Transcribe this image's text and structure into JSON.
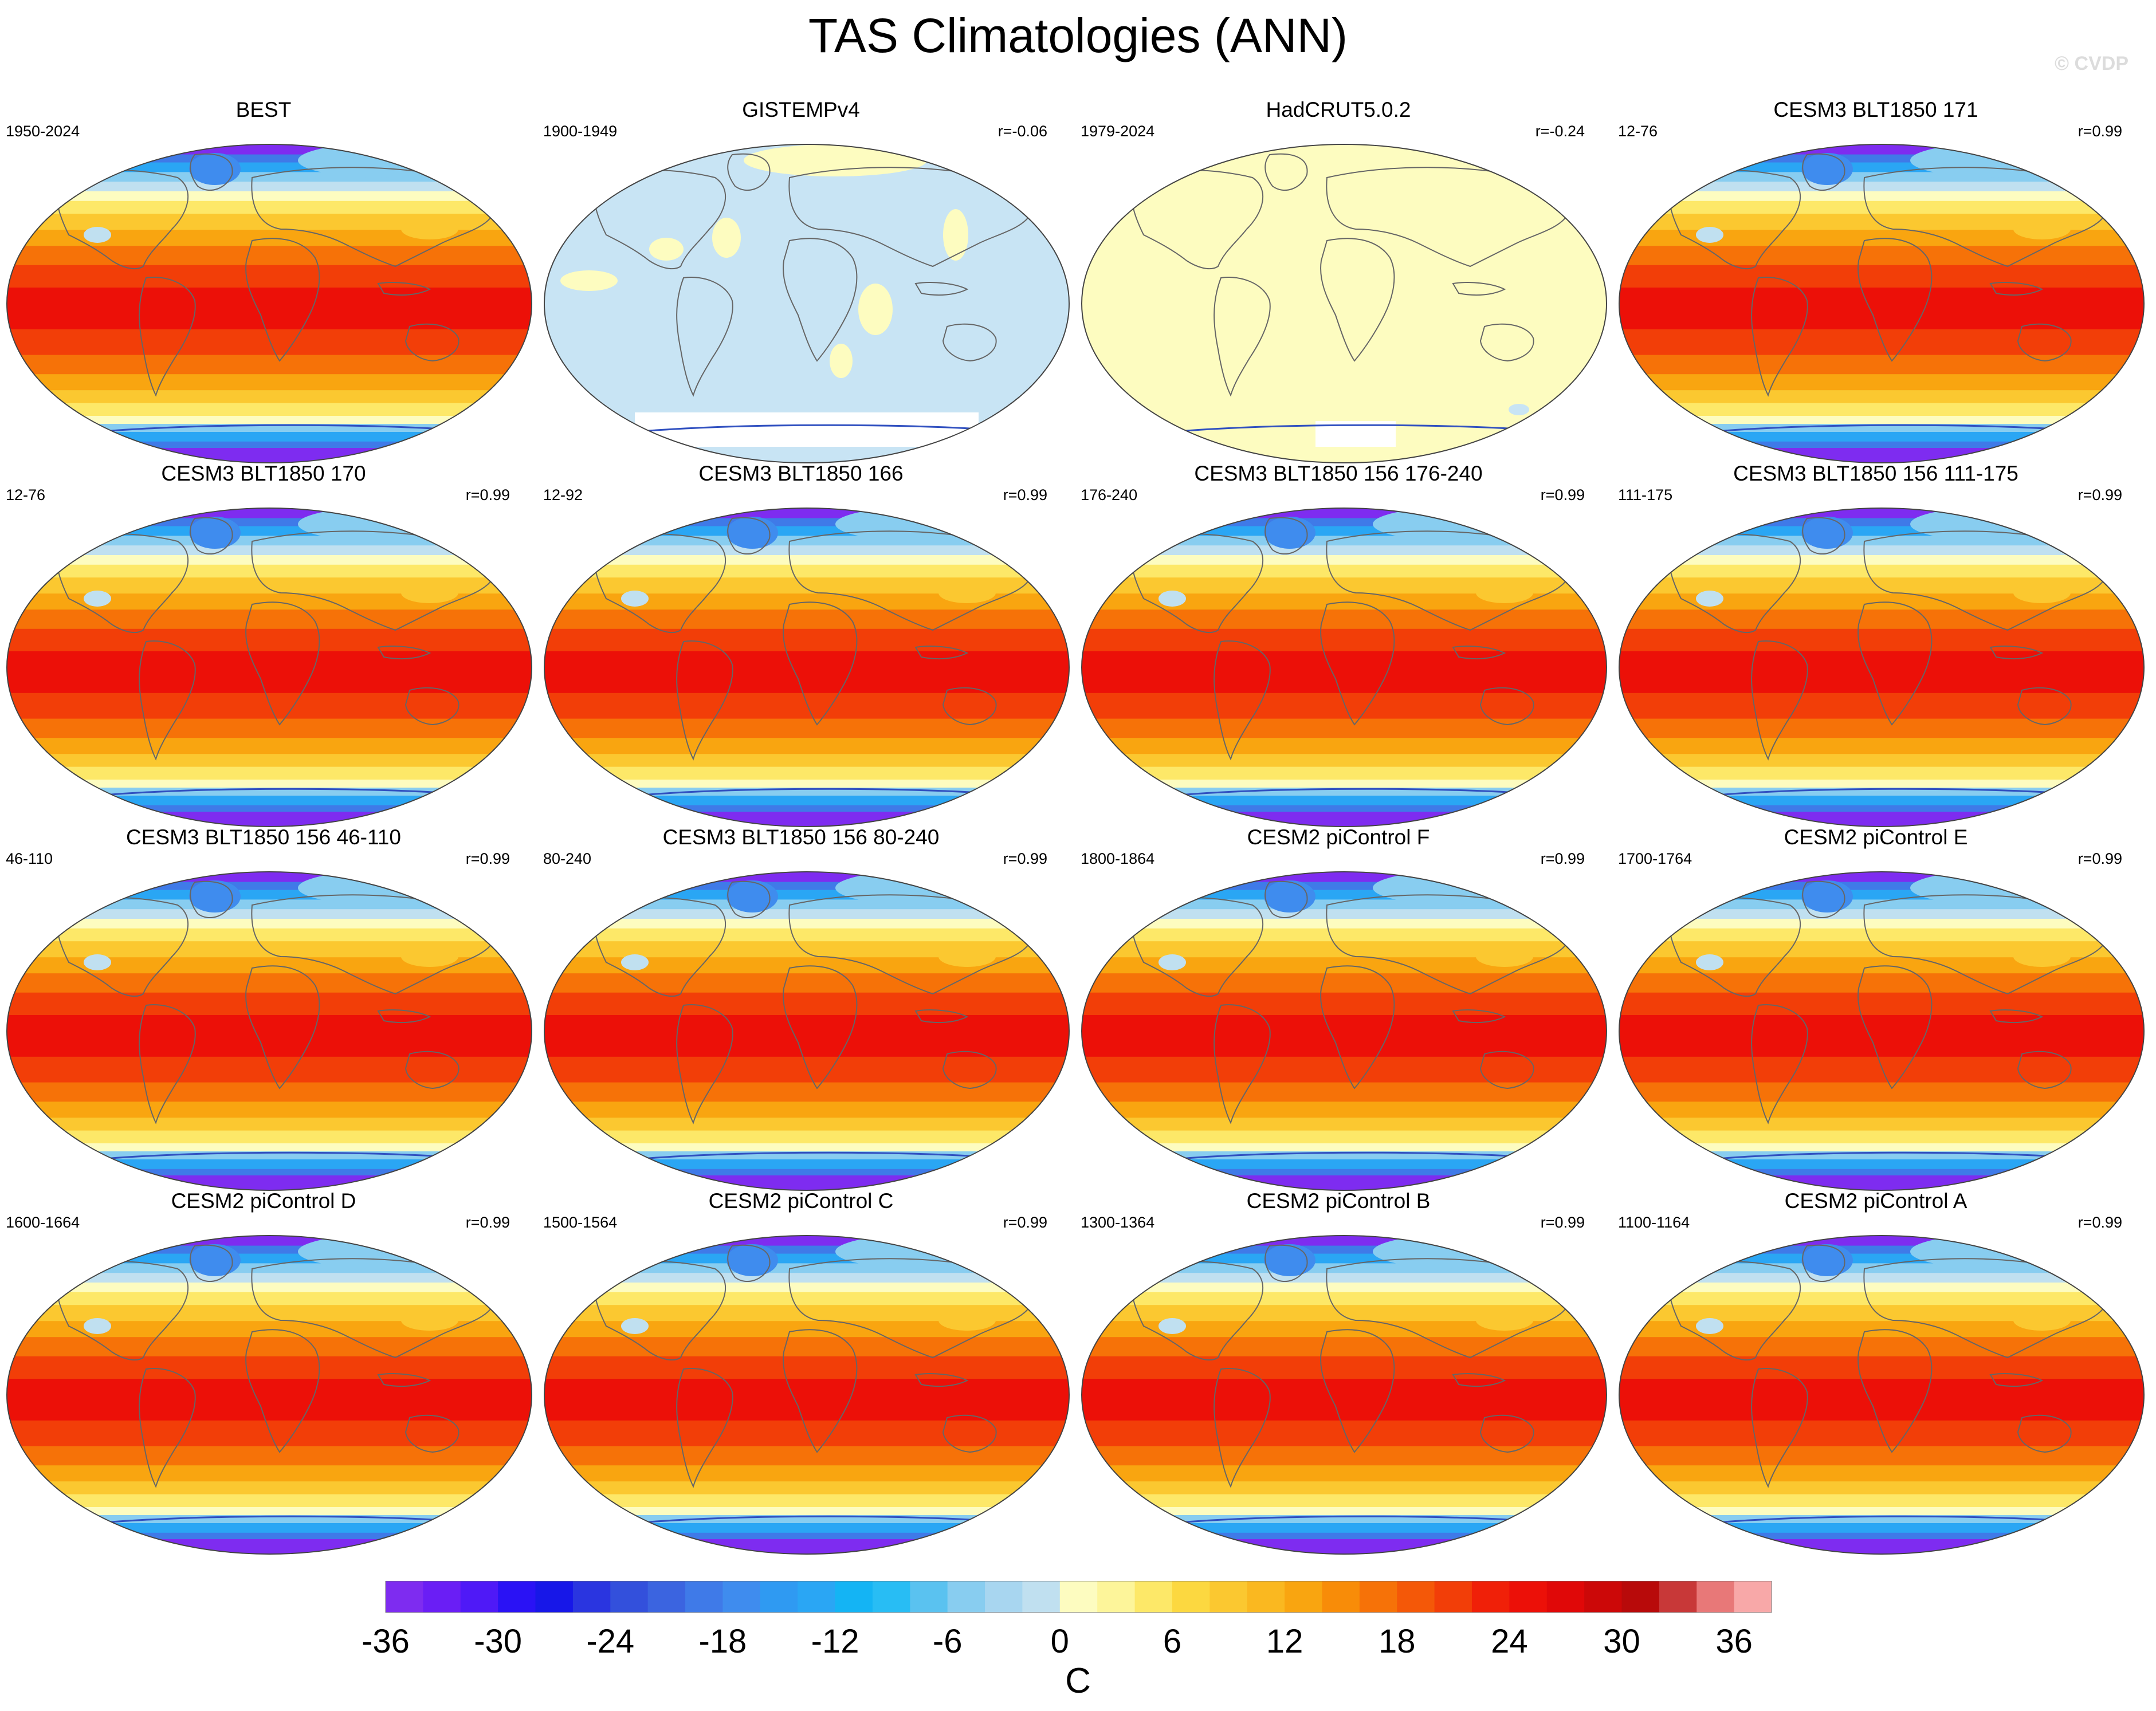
{
  "title": "TAS Climatologies (ANN)",
  "watermark": "© CVDP",
  "panels": [
    {
      "name": "BEST",
      "period": "1950-2024",
      "r": "",
      "pattern": "full"
    },
    {
      "name": "GISTEMPv4",
      "period": "1900-1949",
      "r": "r=-0.06",
      "pattern": "gistemp"
    },
    {
      "name": "HadCRUT5.0.2",
      "period": "1979-2024",
      "r": "r=-0.24",
      "pattern": "hadcrut"
    },
    {
      "name": "CESM3 BLT1850 171",
      "period": "12-76",
      "r": "r=0.99",
      "pattern": "full"
    },
    {
      "name": "CESM3 BLT1850 170",
      "period": "12-76",
      "r": "r=0.99",
      "pattern": "full"
    },
    {
      "name": "CESM3 BLT1850 166",
      "period": "12-92",
      "r": "r=0.99",
      "pattern": "full"
    },
    {
      "name": "CESM3 BLT1850 156 176-240",
      "period": "176-240",
      "r": "r=0.99",
      "pattern": "full"
    },
    {
      "name": "CESM3 BLT1850 156 111-175",
      "period": "111-175",
      "r": "r=0.99",
      "pattern": "full"
    },
    {
      "name": "CESM3 BLT1850 156 46-110",
      "period": "46-110",
      "r": "r=0.99",
      "pattern": "full"
    },
    {
      "name": "CESM3 BLT1850 156 80-240",
      "period": "80-240",
      "r": "r=0.99",
      "pattern": "full"
    },
    {
      "name": "CESM2 piControl F",
      "period": "1800-1864",
      "r": "r=0.99",
      "pattern": "full"
    },
    {
      "name": "CESM2 piControl E",
      "period": "1700-1764",
      "r": "r=0.99",
      "pattern": "full"
    },
    {
      "name": "CESM2 piControl D",
      "period": "1600-1664",
      "r": "r=0.99",
      "pattern": "full"
    },
    {
      "name": "CESM2 piControl C",
      "period": "1500-1564",
      "r": "r=0.99",
      "pattern": "full"
    },
    {
      "name": "CESM2 piControl B",
      "period": "1300-1364",
      "r": "r=0.99",
      "pattern": "full"
    },
    {
      "name": "CESM2 piControl A",
      "period": "1100-1164",
      "r": "r=0.99",
      "pattern": "full"
    }
  ],
  "colorbar": {
    "units": "C",
    "tick_labels": [
      "-36",
      "-30",
      "-24",
      "-18",
      "-12",
      "-6",
      "0",
      "6",
      "12",
      "18",
      "24",
      "30",
      "36"
    ],
    "colors": [
      "#7e2cf0",
      "#6a1ef5",
      "#4f19f7",
      "#2a12f5",
      "#1717e8",
      "#2a35e0",
      "#3350dc",
      "#3b64e0",
      "#3f7ae8",
      "#3f8cee",
      "#2f9af2",
      "#2aa6f4",
      "#14b4f4",
      "#28bdf4",
      "#5ac2f0",
      "#88cdf0",
      "#a8d6f0",
      "#c0e0f0",
      "#fdfcc0",
      "#fdf59a",
      "#fde868",
      "#fcd840",
      "#fbc830",
      "#fab820",
      "#f9a510",
      "#f88c08",
      "#f67208",
      "#f45808",
      "#f23e08",
      "#f02008",
      "#ec1008",
      "#e00808",
      "#cc0808",
      "#b80a0a",
      "#c83838",
      "#e87878",
      "#f8a8a8"
    ]
  }
}
